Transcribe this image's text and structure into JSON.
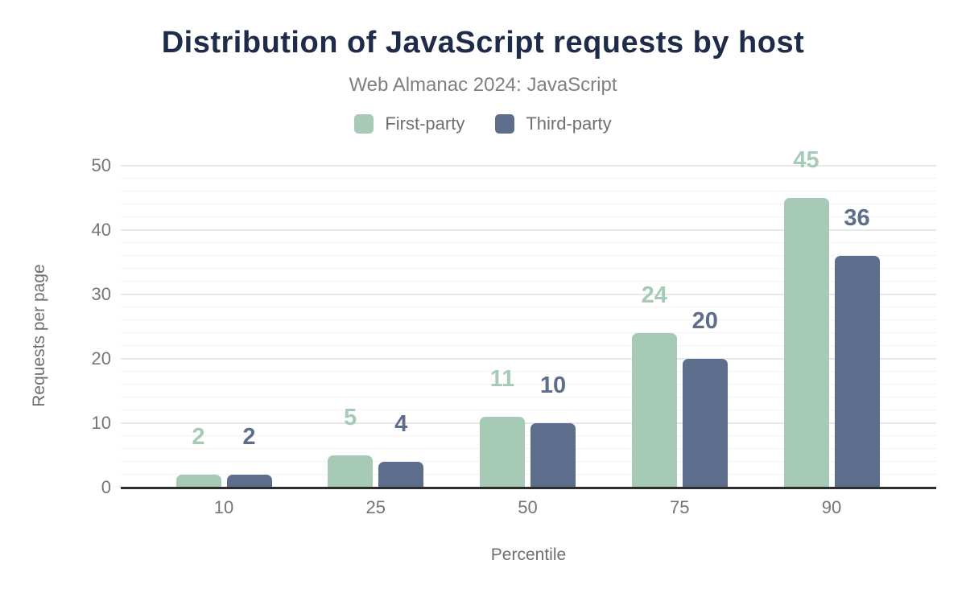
{
  "figure": {
    "title": "Distribution of JavaScript requests by host",
    "subtitle": "Web Almanac 2024: JavaScript"
  },
  "chart_data": {
    "type": "bar",
    "title": "Distribution of JavaScript requests by host",
    "subtitle": "Web Almanac 2024: JavaScript",
    "categories": [
      "10",
      "25",
      "50",
      "75",
      "90"
    ],
    "series": [
      {
        "name": "First-party",
        "color": "#a7cab6",
        "values": [
          2,
          5,
          11,
          24,
          45
        ]
      },
      {
        "name": "Third-party",
        "color": "#5d6e8c",
        "values": [
          2,
          4,
          10,
          20,
          36
        ]
      }
    ],
    "xlabel": "Percentile",
    "ylabel": "Requests per page",
    "ylim": [
      0,
      50
    ],
    "yticks": [
      0,
      10,
      20,
      30,
      40,
      50
    ],
    "minor_grid_step": 2,
    "grid": "horizontal",
    "legend_position": "top",
    "value_labels": true
  },
  "colors": {
    "background": "#ffffff",
    "title_text": "#1e2b49",
    "subtitle_text": "#7f7f7f",
    "tick_text": "#757575",
    "axis_title_text": "#6f6f6f",
    "axis_line": "#2d2d2d",
    "grid_major": "#e8e8e8",
    "grid_minor": "#f2f2f2",
    "first_party": "#a7cab6",
    "third_party": "#5d6e8c"
  }
}
